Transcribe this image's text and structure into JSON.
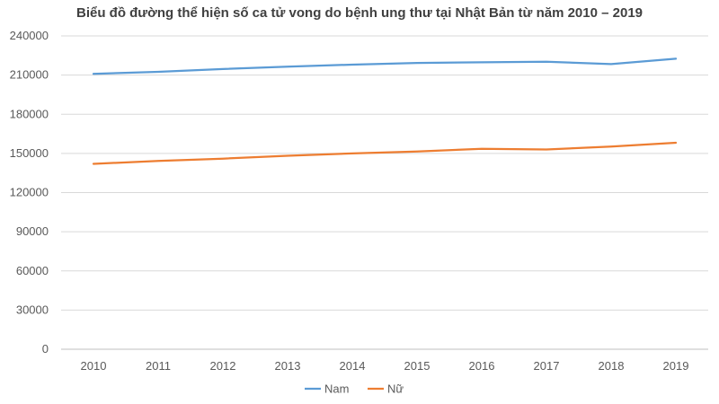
{
  "chart_data": {
    "type": "line",
    "title": "Biểu đồ đường thể hiện số ca tử vong do bệnh ung thư tại Nhật Bản từ năm 2010 – 2019",
    "xlabel": "",
    "ylabel": "",
    "categories": [
      "2010",
      "2011",
      "2012",
      "2013",
      "2014",
      "2015",
      "2016",
      "2017",
      "2018",
      "2019"
    ],
    "ylim": [
      0,
      240000
    ],
    "yticks": [
      0,
      30000,
      60000,
      90000,
      120000,
      150000,
      180000,
      210000,
      240000
    ],
    "grid": true,
    "legend_position": "bottom",
    "series": [
      {
        "name": "Nam",
        "color": "#5B9BD5",
        "values": [
          211000,
          212500,
          214600,
          216500,
          218000,
          219300,
          219800,
          220200,
          218400,
          222500
        ]
      },
      {
        "name": "Nữ",
        "color": "#ED7D31",
        "values": [
          142000,
          144300,
          146000,
          148200,
          150000,
          151500,
          153500,
          153000,
          155300,
          158200
        ]
      }
    ]
  }
}
